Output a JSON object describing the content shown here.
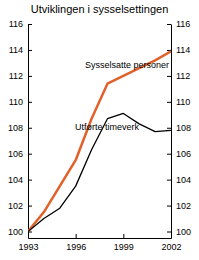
{
  "chart_data": {
    "type": "line",
    "title": "Utviklingen i sysselsettingen",
    "x": [
      1993,
      1994,
      1995,
      1996,
      1997,
      1998,
      1999,
      2000,
      2001,
      2002
    ],
    "series": [
      {
        "name": "Sysselsatte personer",
        "color": "#e0622a",
        "values": [
          100,
          101.5,
          103.5,
          105.5,
          108.7,
          111.4,
          112.0,
          112.6,
          113.2,
          113.9
        ]
      },
      {
        "name": "Utførte timeverk",
        "color": "#000000",
        "values": [
          100,
          101.0,
          101.8,
          103.5,
          106.3,
          108.7,
          109.1,
          108.3,
          107.7,
          107.8
        ]
      }
    ],
    "xlim": [
      1993,
      2002
    ],
    "xticks": [
      1993,
      1996,
      1999,
      2002
    ],
    "ylim": [
      99.5,
      116
    ],
    "yticks": [
      100,
      102,
      104,
      106,
      108,
      110,
      112,
      114,
      116
    ],
    "grid": false
  }
}
